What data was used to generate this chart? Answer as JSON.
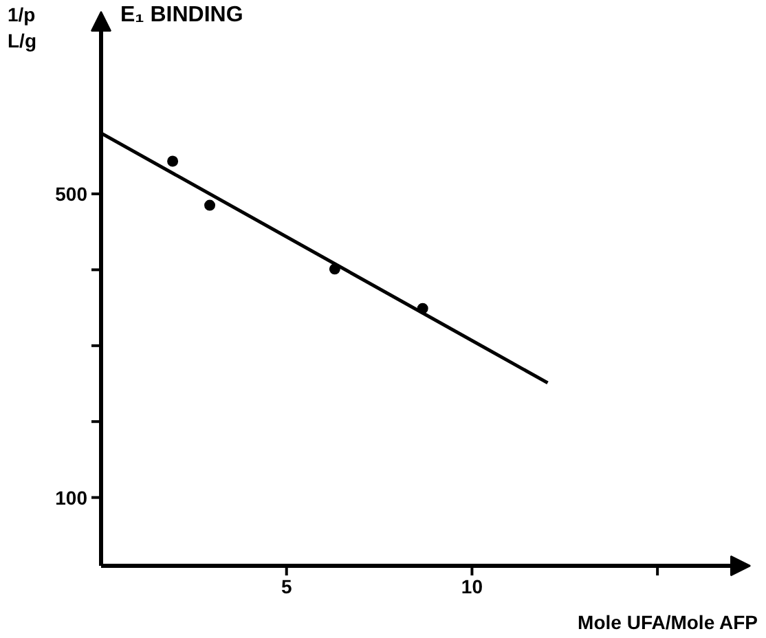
{
  "chart_data": {
    "type": "scatter",
    "title": "E₁ BINDING",
    "xlabel": "Mole UFA/Mole AFP",
    "ylabel": "1/p\nL/g",
    "xlim": [
      0,
      17.5
    ],
    "ylim": [
      10,
      740
    ],
    "xticks": [
      5,
      10,
      {
        "value": 15,
        "label": null
      }
    ],
    "yticks": [
      100,
      {
        "value": 200,
        "label": null
      },
      {
        "value": 300,
        "label": null
      },
      {
        "value": 400,
        "label": null
      },
      500
    ],
    "grid": false,
    "series": [
      {
        "color": "#000000",
        "marker": "circle",
        "x": [
          1.93,
          2.93,
          6.3,
          8.67
        ],
        "values": [
          543,
          485,
          401,
          349
        ]
      },
      {
        "type": "line",
        "color": "#000000",
        "marker": "none",
        "line_style": "solid",
        "x": [
          0,
          12.04
        ],
        "values": [
          580,
          251
        ]
      }
    ]
  }
}
